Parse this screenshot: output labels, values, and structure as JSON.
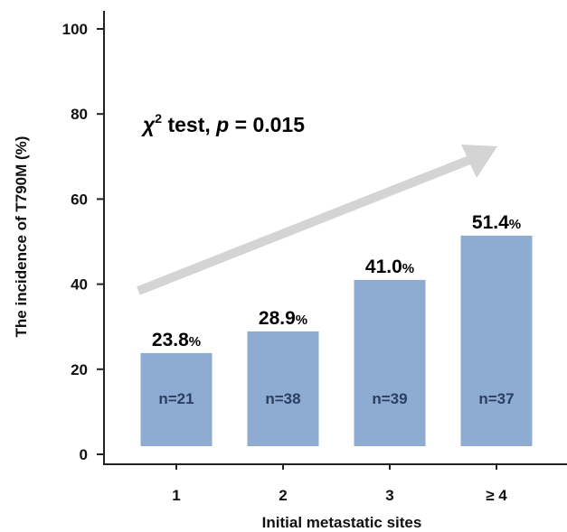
{
  "chart_data": {
    "type": "bar",
    "categories": [
      "1",
      "2",
      "3",
      "≥ 4"
    ],
    "values": [
      23.8,
      28.9,
      41.0,
      51.4
    ],
    "value_labels": [
      "23.8",
      "28.9",
      "41.0",
      "51.4"
    ],
    "value_unit": "%",
    "counts": [
      "n=21",
      "n=38",
      "n=39",
      "n=37"
    ],
    "xlabel": "Initial metastatic sites",
    "ylabel": "The incidence of T790M (%)",
    "ylim": [
      0,
      100
    ],
    "yticks": [
      "0",
      "20",
      "40",
      "60",
      "80",
      "100"
    ],
    "annotation": {
      "symbol": "χ",
      "superscript": "2",
      "text_mid": " test, ",
      "p_symbol": "p",
      "text_end": " = 0.015"
    },
    "trend_arrow": "increasing",
    "grid": false,
    "colors": {
      "bar": "#8eabd1",
      "count_text": "#2a3f5f",
      "arrow": "#d4d4d4",
      "axis": "#222222"
    }
  }
}
